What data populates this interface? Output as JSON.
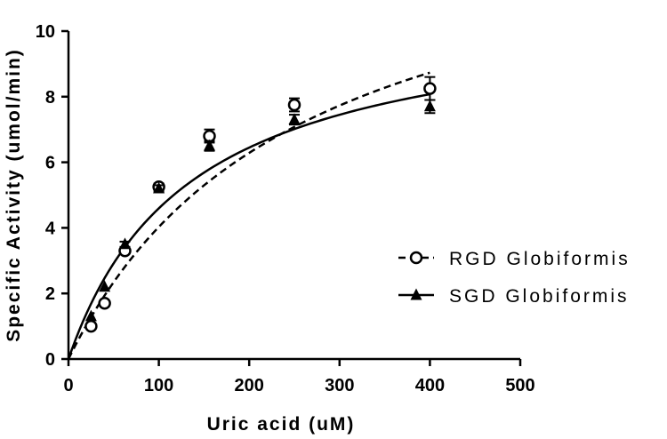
{
  "chart_data": {
    "type": "scatter",
    "xlabel": "Uric acid (uM)",
    "ylabel": "Specific Activity (umol/min)",
    "xlim": [
      0,
      500
    ],
    "ylim": [
      0,
      10
    ],
    "x_ticks": [
      "0",
      "100",
      "200",
      "300",
      "400",
      "500"
    ],
    "y_ticks": [
      "0",
      "2",
      "4",
      "6",
      "8",
      "10"
    ],
    "grid": false,
    "legend_position": "right",
    "series": [
      {
        "name": "RGD Globiformis",
        "marker": "open-circle",
        "line_style": "dashed",
        "color": "#000000",
        "x": [
          25,
          40,
          62.5,
          100,
          156,
          250,
          400
        ],
        "y": [
          1.0,
          1.7,
          3.3,
          5.25,
          6.8,
          7.75,
          8.25
        ],
        "error": [
          0.05,
          0.05,
          0.08,
          0.1,
          0.2,
          0.2,
          0.35
        ],
        "fit": {
          "model": "Michaelis-Menten",
          "vmax": 14.3,
          "km": 255
        }
      },
      {
        "name": "SGD Globiformis",
        "marker": "filled-triangle",
        "line_style": "solid",
        "color": "#000000",
        "x": [
          25,
          40,
          62.5,
          100,
          156,
          250,
          400
        ],
        "y": [
          1.3,
          2.2,
          3.5,
          5.2,
          6.5,
          7.3,
          7.7
        ],
        "error": [
          0.05,
          0.05,
          0.08,
          0.1,
          0.15,
          0.15,
          0.2
        ],
        "fit": {
          "model": "Michaelis-Menten",
          "vmax": 10.8,
          "km": 135
        }
      }
    ]
  }
}
